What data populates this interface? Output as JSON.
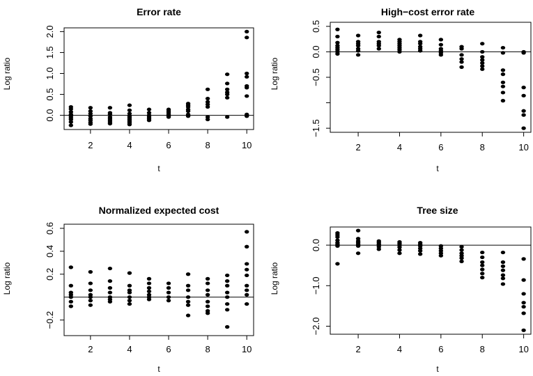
{
  "chart_data": [
    {
      "type": "scatter",
      "title": "Error rate",
      "xlabel": "t",
      "ylabel": "Log ratio",
      "xlim": [
        1,
        10
      ],
      "ylim": [
        -0.25,
        2.0
      ],
      "xticks": [
        2,
        4,
        6,
        8,
        10
      ],
      "yticks": [
        0.0,
        0.5,
        1.0,
        1.5,
        2.0
      ],
      "ytick_labels": [
        "0.0",
        "0.5",
        "1.0",
        "1.5",
        "2.0"
      ],
      "reference_line_y": 0,
      "grid": false,
      "points": [
        {
          "x": 1,
          "y": [
            0.2,
            0.15,
            0.08,
            0.02,
            -0.02,
            -0.06,
            -0.1,
            -0.16,
            -0.24
          ]
        },
        {
          "x": 2,
          "y": [
            0.18,
            0.1,
            0.04,
            -0.02,
            -0.08,
            -0.12,
            -0.17,
            -0.21
          ]
        },
        {
          "x": 3,
          "y": [
            0.18,
            0.06,
            0.02,
            -0.04,
            -0.08,
            -0.12,
            -0.16,
            -0.2
          ]
        },
        {
          "x": 4,
          "y": [
            0.24,
            0.12,
            0.04,
            -0.02,
            -0.06,
            -0.1,
            -0.14,
            -0.18,
            -0.22
          ]
        },
        {
          "x": 5,
          "y": [
            0.14,
            0.06,
            0.0,
            -0.04,
            -0.08,
            -0.12
          ]
        },
        {
          "x": 6,
          "y": [
            0.14,
            0.1,
            0.06,
            0.02,
            -0.02,
            -0.04
          ]
        },
        {
          "x": 7,
          "y": [
            0.28,
            0.24,
            0.2,
            0.14,
            0.1,
            0.02,
            -0.02
          ]
        },
        {
          "x": 8,
          "y": [
            0.62,
            0.4,
            0.32,
            0.26,
            0.2,
            -0.04,
            -0.1
          ]
        },
        {
          "x": 9,
          "y": [
            0.98,
            0.76,
            0.62,
            0.55,
            0.5,
            0.42,
            -0.04
          ]
        },
        {
          "x": 10,
          "y": [
            2.0,
            1.86,
            1.0,
            0.92,
            0.7,
            0.66,
            0.46,
            0.02,
            -0.02
          ]
        }
      ]
    },
    {
      "type": "scatter",
      "title": "High−cost error rate",
      "xlabel": "t",
      "ylabel": "Log ratio",
      "xlim": [
        1,
        10
      ],
      "ylim": [
        -1.5,
        0.5
      ],
      "xticks": [
        2,
        4,
        6,
        8,
        10
      ],
      "yticks": [
        -1.5,
        -1.0,
        -0.5,
        0.0,
        0.5
      ],
      "ytick_labels": [
        "−1.5",
        "",
        "−0.5",
        "0.0",
        "0.5"
      ],
      "reference_line_y": 0,
      "grid": false,
      "points": [
        {
          "x": 1,
          "y": [
            0.44,
            0.3,
            0.18,
            0.12,
            0.08,
            0.04,
            0.0,
            -0.04
          ]
        },
        {
          "x": 2,
          "y": [
            0.32,
            0.2,
            0.16,
            0.12,
            0.06,
            0.02,
            -0.06
          ]
        },
        {
          "x": 3,
          "y": [
            0.38,
            0.3,
            0.2,
            0.16,
            0.12,
            0.06
          ]
        },
        {
          "x": 4,
          "y": [
            0.24,
            0.2,
            0.16,
            0.12,
            0.08,
            0.04,
            0.0
          ]
        },
        {
          "x": 5,
          "y": [
            0.32,
            0.2,
            0.16,
            0.1,
            0.06,
            0.02
          ]
        },
        {
          "x": 6,
          "y": [
            0.24,
            0.14,
            0.06,
            0.02,
            -0.02,
            -0.06
          ]
        },
        {
          "x": 7,
          "y": [
            0.1,
            0.06,
            -0.06,
            -0.14,
            -0.2,
            -0.3
          ]
        },
        {
          "x": 8,
          "y": [
            0.16,
            0.0,
            -0.1,
            -0.16,
            -0.22,
            -0.28,
            -0.34
          ]
        },
        {
          "x": 9,
          "y": [
            0.08,
            -0.02,
            -0.36,
            -0.44,
            -0.6,
            -0.68,
            -0.8,
            -0.96
          ]
        },
        {
          "x": 10,
          "y": [
            0.0,
            -0.02,
            -0.7,
            -0.86,
            -1.16,
            -1.24,
            -1.5
          ]
        }
      ]
    },
    {
      "type": "scatter",
      "title": "Normalized expected cost",
      "xlabel": "t",
      "ylabel": "Log ratio",
      "xlim": [
        1,
        10
      ],
      "ylim": [
        -0.3,
        0.6
      ],
      "xticks": [
        2,
        4,
        6,
        8,
        10
      ],
      "yticks": [
        -0.2,
        0.2,
        0.4,
        0.6
      ],
      "ytick_labels": [
        "−0.2",
        "0.2",
        "0.4",
        "0.6"
      ],
      "reference_line_y": 0,
      "grid": false,
      "points": [
        {
          "x": 1,
          "y": [
            0.26,
            0.1,
            0.04,
            0.02,
            0.0,
            -0.04,
            -0.08
          ]
        },
        {
          "x": 2,
          "y": [
            0.22,
            0.12,
            0.06,
            0.02,
            0.0,
            -0.03,
            -0.07
          ]
        },
        {
          "x": 3,
          "y": [
            0.25,
            0.14,
            0.08,
            0.04,
            0.0,
            -0.02,
            -0.04
          ]
        },
        {
          "x": 4,
          "y": [
            0.21,
            0.1,
            0.06,
            0.04,
            0.0,
            -0.03,
            -0.06
          ]
        },
        {
          "x": 5,
          "y": [
            0.16,
            0.12,
            0.08,
            0.05,
            0.02,
            0.0,
            -0.02
          ]
        },
        {
          "x": 6,
          "y": [
            0.12,
            0.08,
            0.04,
            0.0,
            -0.03
          ]
        },
        {
          "x": 7,
          "y": [
            0.2,
            0.1,
            0.06,
            0.0,
            -0.04,
            -0.07,
            -0.16
          ]
        },
        {
          "x": 8,
          "y": [
            0.16,
            0.12,
            0.06,
            0.02,
            -0.04,
            -0.08,
            -0.12,
            -0.14
          ]
        },
        {
          "x": 9,
          "y": [
            0.19,
            0.14,
            0.1,
            0.04,
            0.0,
            -0.06,
            -0.11,
            -0.26
          ]
        },
        {
          "x": 10,
          "y": [
            0.57,
            0.44,
            0.29,
            0.24,
            0.19,
            0.1,
            0.06,
            0.02,
            -0.06
          ]
        }
      ]
    },
    {
      "type": "scatter",
      "title": "Tree size",
      "xlabel": "t",
      "ylabel": "Log ratio",
      "xlim": [
        1,
        10
      ],
      "ylim": [
        -2.1,
        0.35
      ],
      "xticks": [
        2,
        4,
        6,
        8,
        10
      ],
      "yticks": [
        -2.0,
        -1.0,
        0.0
      ],
      "ytick_labels": [
        "−2.0",
        "−1.0",
        "0.0"
      ],
      "reference_line_y": 0,
      "grid": false,
      "points": [
        {
          "x": 1,
          "y": [
            0.3,
            0.25,
            0.2,
            0.12,
            0.06,
            0.02,
            -0.02,
            -0.46
          ]
        },
        {
          "x": 2,
          "y": [
            0.36,
            0.16,
            0.1,
            0.06,
            0.02,
            -0.02,
            -0.2
          ]
        },
        {
          "x": 3,
          "y": [
            0.1,
            0.06,
            0.02,
            0.0,
            -0.04,
            -0.1
          ]
        },
        {
          "x": 4,
          "y": [
            0.08,
            0.04,
            0.0,
            -0.05,
            -0.12,
            -0.2
          ]
        },
        {
          "x": 5,
          "y": [
            0.06,
            0.02,
            -0.02,
            -0.08,
            -0.14,
            -0.22
          ]
        },
        {
          "x": 6,
          "y": [
            -0.02,
            -0.08,
            -0.14,
            -0.2,
            -0.26
          ]
        },
        {
          "x": 7,
          "y": [
            -0.04,
            -0.12,
            -0.2,
            -0.26,
            -0.32,
            -0.4
          ]
        },
        {
          "x": 8,
          "y": [
            -0.18,
            -0.3,
            -0.42,
            -0.5,
            -0.6,
            -0.7,
            -0.8
          ]
        },
        {
          "x": 9,
          "y": [
            -0.18,
            -0.42,
            -0.52,
            -0.62,
            -0.74,
            -0.82,
            -0.96
          ]
        },
        {
          "x": 10,
          "y": [
            -0.34,
            -0.86,
            -1.2,
            -1.42,
            -1.52,
            -1.68,
            -2.1
          ]
        }
      ]
    }
  ]
}
